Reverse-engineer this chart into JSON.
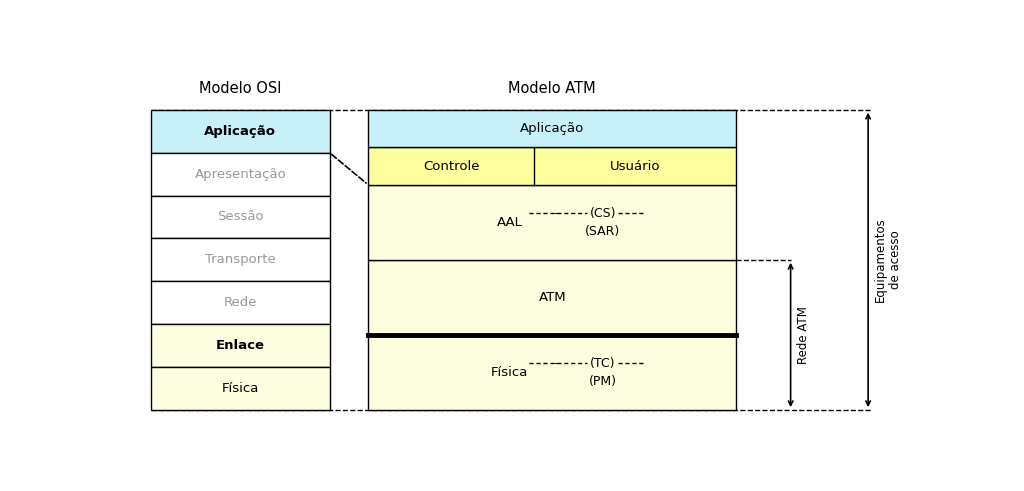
{
  "fig_width": 10.24,
  "fig_height": 4.91,
  "bg_color": "#ffffff",
  "title_osi": "Modelo OSI",
  "title_atm": "Modelo ATM",
  "color_light_blue": "#c8f0f8",
  "color_light_yellow": "#fdfde0",
  "color_yellow": "#ffffa0",
  "color_white": "#ffffff",
  "color_gray_text": "#999999",
  "color_black": "#000000",
  "osi_layers": [
    {
      "label": "Aplicação",
      "color": "#c8f0f8",
      "bold": true,
      "gray": false
    },
    {
      "label": "Apresentação",
      "color": "#ffffff",
      "bold": false,
      "gray": true
    },
    {
      "label": "Sessão",
      "color": "#ffffff",
      "bold": false,
      "gray": true
    },
    {
      "label": "Transporte",
      "color": "#ffffff",
      "bold": false,
      "gray": true
    },
    {
      "label": "Rede",
      "color": "#ffffff",
      "bold": false,
      "gray": true
    },
    {
      "label": "Enlace",
      "color": "#fdfde0",
      "bold": true,
      "gray": false
    },
    {
      "label": "Física",
      "color": "#fdfde0",
      "bold": false,
      "gray": false
    }
  ]
}
